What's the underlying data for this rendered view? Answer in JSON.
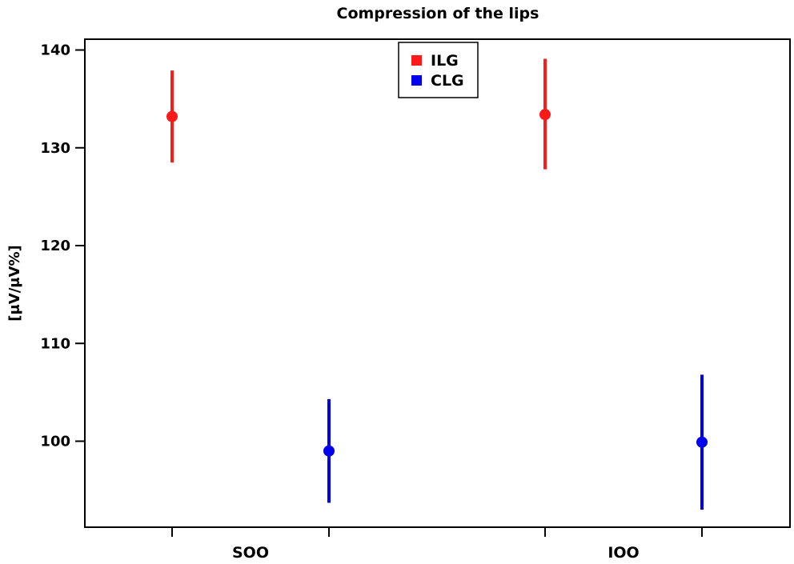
{
  "chart_data": {
    "type": "scatter",
    "title": "Compression of the lips",
    "xlabel": "",
    "ylabel": "[μV/μV%]",
    "ylim": [
      91,
      141
    ],
    "yticks": [
      100,
      110,
      120,
      130,
      140
    ],
    "categories": [
      "SOO",
      "IOO"
    ],
    "legend_position": "top-center",
    "grid": false,
    "series": [
      {
        "name": "ILG",
        "color": "#ff1a1a",
        "points": [
          {
            "category": "SOO",
            "value": 133.2,
            "low": 128.5,
            "high": 137.9
          },
          {
            "category": "IOO",
            "value": 133.4,
            "low": 127.8,
            "high": 139.1
          }
        ]
      },
      {
        "name": "CLG",
        "color": "#0000ee",
        "points": [
          {
            "category": "SOO",
            "value": 99.0,
            "low": 93.7,
            "high": 104.3
          },
          {
            "category": "IOO",
            "value": 99.9,
            "low": 93.0,
            "high": 106.8
          }
        ]
      }
    ]
  }
}
